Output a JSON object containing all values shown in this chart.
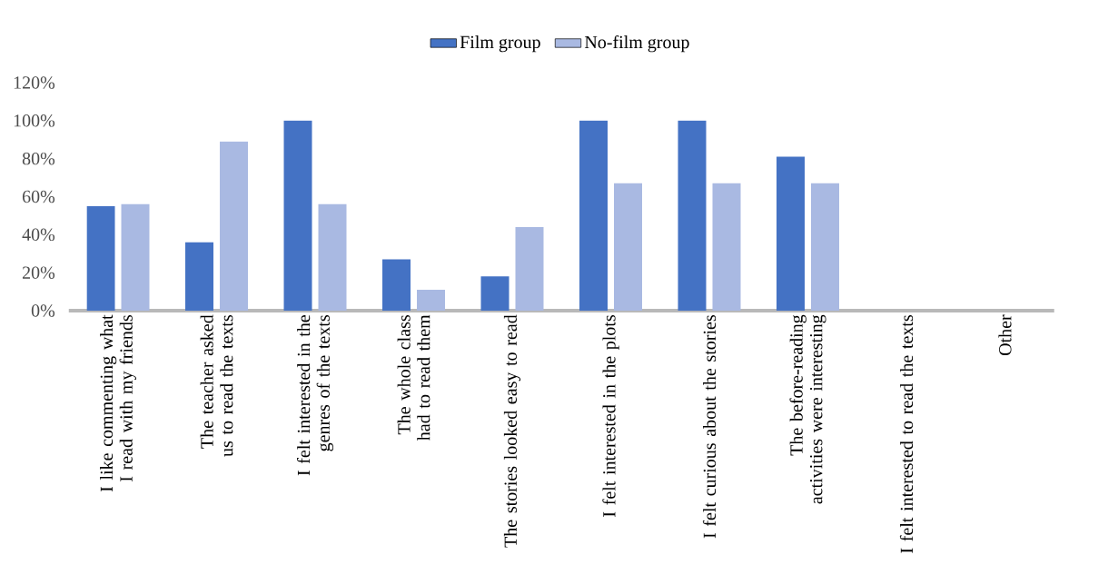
{
  "chart_data": {
    "type": "bar",
    "categories": [
      "I like commenting what I read with my friends",
      "The teacher asked us to read the texts",
      "I felt interested in the genres of the texts",
      "The whole class had to read them",
      "The stories looked easy to read",
      "I felt interested in the plots",
      "I felt curious about the stories",
      "The before-reading activities were interesting",
      "I felt interested to read the texts",
      "Other"
    ],
    "series": [
      {
        "name": "Film group",
        "color": "#4472c4",
        "values": [
          55,
          36,
          100,
          27,
          18,
          100,
          100,
          81,
          0,
          0
        ]
      },
      {
        "name": "No-film group",
        "color": "#a9b9e2",
        "values": [
          56,
          89,
          56,
          11,
          44,
          67,
          67,
          67,
          0,
          0
        ]
      }
    ],
    "ylim": [
      0,
      120
    ],
    "yticks": [
      {
        "value": 0,
        "label": "0%"
      },
      {
        "value": 20,
        "label": "20%"
      },
      {
        "value": 40,
        "label": "40%"
      },
      {
        "value": 60,
        "label": "60%"
      },
      {
        "value": 80,
        "label": "80%"
      },
      {
        "value": 100,
        "label": "100%"
      },
      {
        "value": 120,
        "label": "120%"
      }
    ],
    "grid": false,
    "legend": "top"
  }
}
